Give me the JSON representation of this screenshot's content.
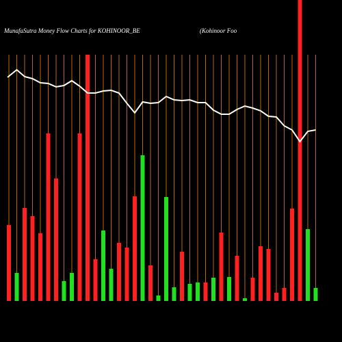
{
  "chart_data": {
    "type": "bar",
    "title": "MunafaSutra  Money Flow  Charts for KOHINOOR_BE",
    "subtitle": "(Kohinoor Foo",
    "ylim": [
      0,
      440
    ],
    "values": [
      111,
      41,
      136,
      124,
      99,
      245,
      179,
      29,
      41,
      245,
      360,
      61,
      103,
      47,
      85,
      78,
      153,
      213,
      52,
      8,
      152,
      20,
      72,
      25,
      27,
      27,
      34,
      100,
      35,
      66,
      4,
      34,
      80,
      76,
      12,
      19,
      135,
      440,
      105,
      19
    ],
    "bar_colors": [
      "#ff2020",
      "#20e020",
      "#ff2020",
      "#ff2020",
      "#ff2020",
      "#ff2020",
      "#ff2020",
      "#20e020",
      "#20e020",
      "#ff2020",
      "#ff2020",
      "#ff2020",
      "#20e020",
      "#20e020",
      "#ff2020",
      "#ff2020",
      "#ff2020",
      "#20e020",
      "#ff2020",
      "#20e020",
      "#20e020",
      "#20e020",
      "#ff2020",
      "#20e020",
      "#20e020",
      "#ff2020",
      "#20e020",
      "#ff2020",
      "#20e020",
      "#ff2020",
      "#20e020",
      "#ff2020",
      "#ff2020",
      "#ff2020",
      "#ff2020",
      "#ff2020",
      "#ff2020",
      "#ff2020",
      "#20e020",
      "#20e020"
    ],
    "line_values": [
      327,
      338,
      328,
      325,
      319,
      318,
      313,
      315,
      322,
      314,
      304,
      304,
      307,
      308,
      304,
      289,
      275,
      291,
      289,
      290,
      299,
      294,
      293,
      294,
      290,
      290,
      279,
      273,
      273,
      280,
      285,
      282,
      278,
      270,
      269,
      256,
      250,
      233,
      248,
      250
    ],
    "line_color": "#ffffff",
    "grid_color": "#b86a00"
  }
}
